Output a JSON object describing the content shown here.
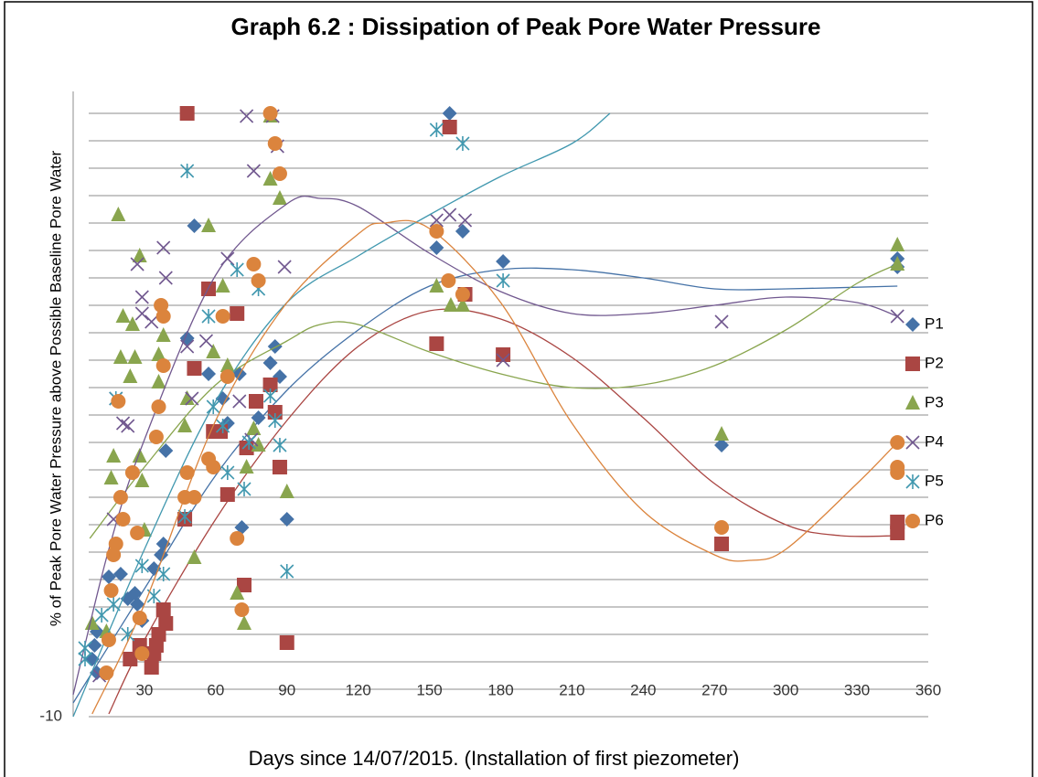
{
  "chart_data": {
    "type": "scatter",
    "title": "Graph 6.2 : Dissipation of Peak Pore Water Pressure",
    "x_label": "Days since 14/07/2015. (Installation of first piezometer)",
    "y_label": "% of Peak Pore Water Pressure above Possible Baseline Pore Water",
    "xlim": [
      0,
      360
    ],
    "ylim": [
      -10,
      210
    ],
    "xticks": [
      30,
      60,
      90,
      120,
      150,
      180,
      210,
      240,
      270,
      300,
      330,
      360
    ],
    "yticks": [
      -10,
      0,
      10,
      20,
      30,
      40,
      50,
      60,
      70,
      80,
      90,
      100,
      110,
      120,
      130,
      140,
      150,
      160,
      170,
      180,
      190,
      200,
      210
    ],
    "grid": true,
    "legend": "right",
    "series": [
      {
        "name": "P1",
        "color": "#4572a7",
        "marker": "diamond",
        "x": [
          158.5,
          164,
          153,
          181,
          347,
          347,
          273,
          85,
          83,
          87,
          70,
          57,
          63,
          65,
          78,
          48,
          51,
          39,
          90,
          71,
          38,
          37,
          34,
          26,
          20,
          15,
          27,
          23,
          10,
          9,
          8,
          10,
          29
        ],
        "y": [
          210,
          167,
          161,
          156,
          157,
          154,
          89,
          125,
          119,
          114,
          115,
          115,
          106,
          97,
          99,
          128,
          169,
          87,
          62,
          59,
          53,
          49,
          44,
          35,
          42,
          41,
          31,
          33,
          21,
          16,
          11,
          6,
          25
        ],
        "trend": {
          "x": [
            0,
            31,
            60,
            90,
            120,
            150,
            180,
            210,
            240,
            270,
            300,
            347
          ],
          "y": [
            -5,
            38,
            78,
            109,
            131,
            147,
            153,
            153,
            150,
            146,
            146,
            147
          ]
        }
      },
      {
        "name": "P2",
        "color": "#aa4643",
        "marker": "square",
        "x": [
          48,
          158.5,
          57,
          69,
          165,
          153,
          181,
          51,
          77,
          83,
          85,
          59,
          62,
          73,
          87,
          65,
          47,
          72,
          38,
          39,
          36,
          35,
          34,
          28,
          24,
          33,
          90,
          273,
          347,
          347
        ],
        "y": [
          210,
          205,
          146,
          137,
          144,
          126,
          122,
          117,
          105,
          111,
          101,
          94,
          94,
          88,
          81,
          71,
          62,
          38,
          29,
          24,
          20,
          16,
          13,
          16,
          11,
          8,
          17,
          53,
          61,
          57
        ],
        "trend": {
          "x": [
            15,
            30,
            60,
            90,
            120,
            150,
            180,
            210,
            240,
            270,
            300,
            323,
            347
          ],
          "y": [
            -9,
            18,
            62,
            98,
            125,
            138,
            135,
            121,
            99,
            75,
            60,
            56,
            56
          ]
        }
      },
      {
        "name": "P3",
        "color": "#89a54e",
        "marker": "triangle",
        "x": [
          19,
          28,
          57,
          83,
          87,
          83,
          347,
          347,
          153,
          159,
          164,
          63,
          59,
          65,
          38,
          36,
          21,
          25,
          20,
          26,
          24,
          36,
          47,
          48,
          17,
          16,
          28,
          29,
          76,
          78,
          73,
          90,
          30,
          51,
          69,
          72,
          273,
          14,
          8
        ],
        "y": [
          173,
          158,
          169,
          186,
          179,
          209,
          162,
          155,
          147,
          140,
          140,
          147,
          123,
          118,
          129,
          122,
          136,
          133,
          121,
          121,
          114,
          112,
          96,
          106,
          85,
          77,
          85,
          76,
          95,
          89,
          81,
          72,
          58,
          48,
          35,
          24,
          93,
          21,
          24
        ],
        "trend": {
          "x": [
            7,
            30,
            60,
            90,
            104,
            120,
            150,
            180,
            210,
            240,
            270,
            300,
            330,
            347
          ],
          "y": [
            55,
            81,
            111,
            127,
            133,
            133,
            123,
            115,
            110,
            111,
            118,
            131,
            148,
            155
          ]
        }
      },
      {
        "name": "P4",
        "color": "#71588f",
        "marker": "x",
        "x": [
          73,
          84,
          76,
          86,
          158.5,
          153,
          165,
          89,
          65,
          27,
          38,
          39,
          29,
          29,
          33,
          273,
          347,
          181,
          48,
          50,
          56,
          21,
          23,
          18,
          70,
          75,
          17,
          11
        ],
        "y": [
          209,
          209,
          189,
          198,
          173,
          171,
          171,
          154,
          157,
          155,
          161,
          150,
          143,
          137,
          134,
          134,
          136,
          120,
          125,
          106,
          127,
          97,
          96,
          106,
          105,
          91,
          62,
          5
        ],
        "trend": {
          "x": [
            0,
            15,
            30,
            60,
            90,
            104,
            120,
            150,
            180,
            210,
            240,
            270,
            300,
            330,
            347
          ],
          "y": [
            -2,
            51,
            91,
            151,
            177,
            179,
            176,
            159,
            145,
            137,
            137,
            140,
            143,
            141,
            136
          ]
        }
      },
      {
        "name": "P5",
        "color": "#4198af",
        "marker": "star",
        "x": [
          48,
          153,
          164,
          69,
          78,
          57,
          181,
          59,
          63,
          83,
          85,
          87,
          74,
          65,
          72,
          90,
          47,
          18,
          29,
          38,
          34,
          17,
          12,
          23,
          5,
          5
        ],
        "y": [
          189,
          204,
          199,
          153,
          146,
          136,
          149,
          103,
          96,
          107,
          98,
          89,
          90,
          79,
          73,
          43,
          63,
          106,
          45,
          42,
          34,
          31,
          27,
          20,
          15,
          11
        ],
        "trend": {
          "x": [
            0,
            30,
            60,
            90,
            120,
            150,
            180,
            210,
            226
          ],
          "y": [
            -10,
            51,
            105,
            141,
            158,
            173,
            187,
            199,
            210
          ]
        }
      },
      {
        "name": "P6",
        "color": "#db843d",
        "marker": "circle",
        "x": [
          83,
          85,
          87,
          153,
          158,
          164,
          76,
          78,
          63,
          37,
          38,
          38,
          36,
          19,
          65,
          35,
          57,
          59,
          48,
          47,
          51,
          25,
          20,
          21,
          27,
          18,
          17,
          16,
          28,
          15,
          14,
          29,
          69,
          71,
          273,
          347,
          347,
          347
        ],
        "y": [
          210,
          199,
          188,
          167,
          149,
          144,
          155,
          149,
          136,
          140,
          136,
          118,
          103,
          105,
          114,
          92,
          84,
          81,
          79,
          70,
          70,
          79,
          70,
          62,
          57,
          53,
          49,
          36,
          26,
          18,
          6,
          13,
          55,
          29,
          59,
          90,
          81,
          79
        ],
        "trend": {
          "x": [
            8,
            30,
            60,
            90,
            120,
            131,
            150,
            180,
            210,
            240,
            270,
            285,
            300,
            330,
            347
          ],
          "y": [
            -9,
            31,
            98,
            141,
            166,
            170,
            168,
            141,
            97,
            65,
            49,
            47,
            51,
            75,
            90
          ]
        }
      }
    ]
  }
}
